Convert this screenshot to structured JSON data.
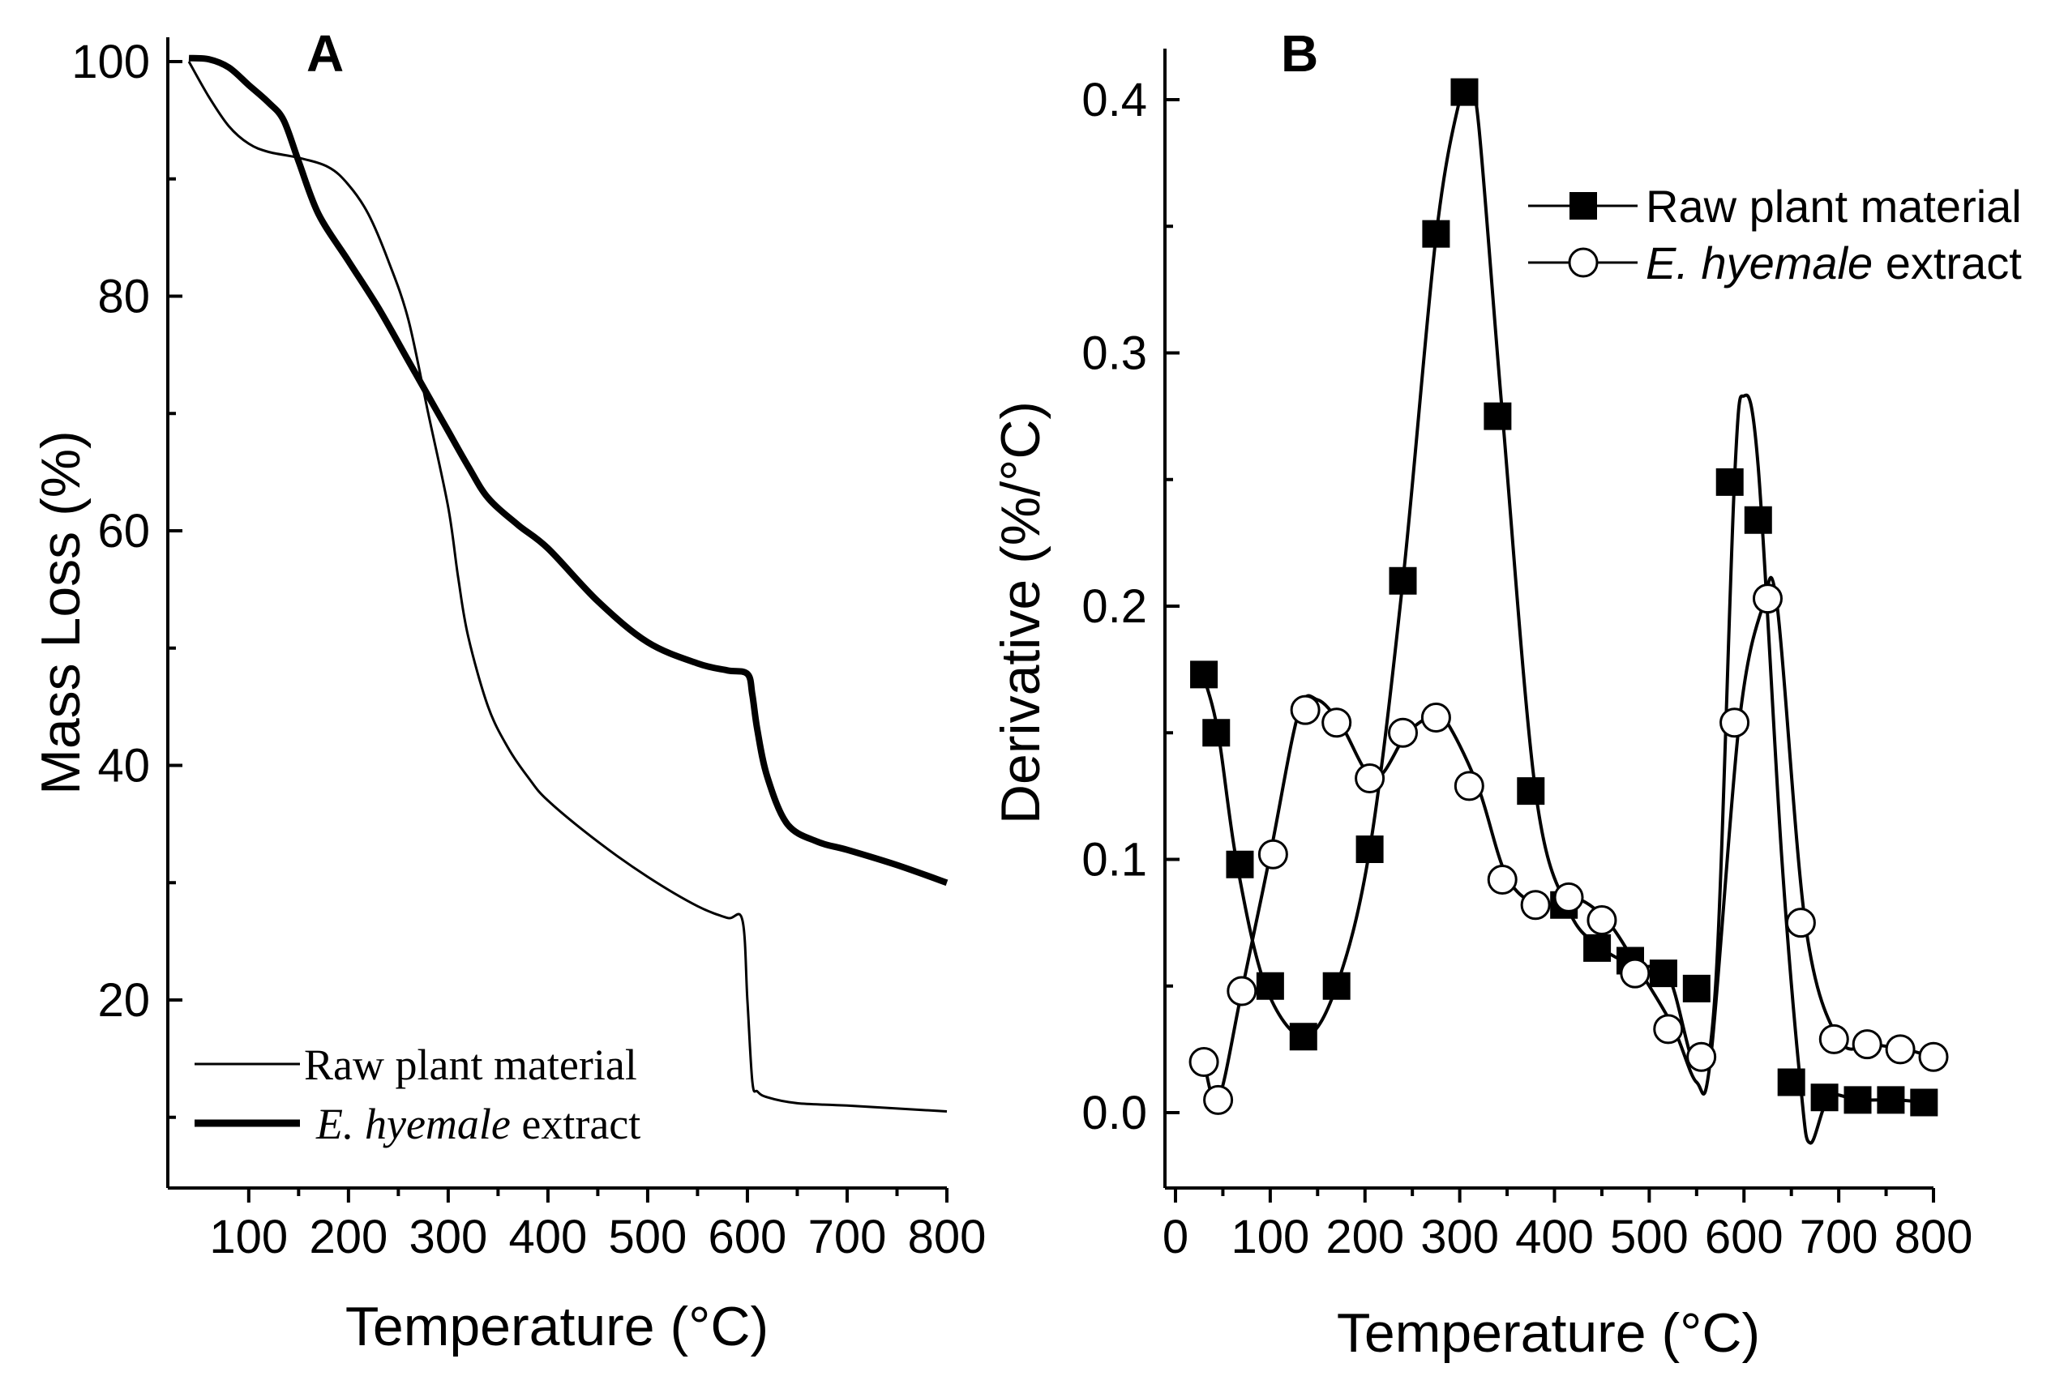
{
  "chart_data": [
    {
      "panel": "A",
      "type": "line",
      "title": "A",
      "xlabel": "Temperature (°C)",
      "ylabel": "Mass Loss (%)",
      "xlim": [
        20,
        800
      ],
      "ylim": [
        5,
        100
      ],
      "xticks": [
        100,
        200,
        300,
        400,
        500,
        600,
        700,
        800
      ],
      "xtick_labels": [
        "100",
        "200",
        "300",
        "400",
        "500",
        "600",
        "700",
        "800"
      ],
      "yticks": [
        20,
        40,
        60,
        80,
        100
      ],
      "ytick_labels": [
        "20",
        "40",
        "60",
        "80",
        "100"
      ],
      "legend_position": "bottom-left",
      "series": [
        {
          "name": "Raw plant material",
          "style": "thin",
          "x": [
            40,
            60,
            80,
            100,
            120,
            150,
            180,
            200,
            220,
            240,
            260,
            280,
            300,
            310,
            320,
            340,
            360,
            380,
            400,
            450,
            500,
            550,
            580,
            595,
            600,
            605,
            610,
            620,
            650,
            700,
            800
          ],
          "y": [
            100,
            97,
            94.5,
            93,
            92.3,
            91.8,
            91,
            89.5,
            87,
            83,
            78,
            70,
            62,
            56,
            51,
            45,
            41.5,
            39,
            37,
            33.5,
            30.5,
            28,
            27,
            26.8,
            20,
            13,
            12.2,
            11.7,
            11.2,
            11,
            10.5
          ]
        },
        {
          "name": "E. hyemale extract",
          "italic_part": "E. hyemale",
          "plain_part": " extract",
          "style": "thick",
          "x": [
            40,
            60,
            80,
            100,
            120,
            135,
            150,
            170,
            200,
            230,
            260,
            290,
            300,
            320,
            340,
            370,
            400,
            450,
            500,
            550,
            580,
            600,
            605,
            610,
            620,
            640,
            670,
            700,
            750,
            800
          ],
          "y": [
            100.3,
            100.2,
            99.5,
            98,
            96.5,
            95,
            91.5,
            87,
            83,
            79,
            74.5,
            70,
            68.5,
            65.5,
            62.8,
            60.5,
            58.5,
            54,
            50.5,
            48.7,
            48.1,
            47.8,
            46,
            43,
            39,
            35,
            33.5,
            32.8,
            31.5,
            30
          ]
        }
      ]
    },
    {
      "panel": "B",
      "type": "line",
      "title": "B",
      "xlabel": "Temperature (°C)",
      "ylabel": "Derivative (%/°C)",
      "xlim": [
        -10,
        800
      ],
      "ylim": [
        -0.03,
        0.42
      ],
      "xticks": [
        0,
        100,
        200,
        300,
        400,
        500,
        600,
        700,
        800
      ],
      "xtick_labels": [
        "0",
        "100",
        "200",
        "300",
        "400",
        "500",
        "600",
        "700",
        "800"
      ],
      "yticks": [
        0.0,
        0.1,
        0.2,
        0.3,
        0.4
      ],
      "ytick_labels": [
        "0.0",
        "0.1",
        "0.2",
        "0.3",
        "0.4"
      ],
      "legend_position": "top-right",
      "series": [
        {
          "name": "Raw plant material",
          "marker": "filled-square",
          "x": [
            30,
            45,
            65,
            95,
            135,
            170,
            205,
            240,
            275,
            300,
            310,
            320,
            345,
            380,
            415,
            450,
            485,
            520,
            550,
            570,
            590,
            600,
            615,
            640,
            660,
            670,
            690,
            720,
            760,
            795
          ],
          "y": [
            0.172,
            0.15,
            0.098,
            0.05,
            0.03,
            0.05,
            0.104,
            0.21,
            0.346,
            0.4,
            0.404,
            0.39,
            0.276,
            0.127,
            0.08,
            0.065,
            0.058,
            0.054,
            0.018,
            0.05,
            0.25,
            0.283,
            0.255,
            0.1,
            0.01,
            -0.012,
            0.006,
            0.005,
            0.005,
            0.004
          ],
          "markers_x": [
            30,
            43,
            68,
            100,
            135,
            170,
            205,
            240,
            275,
            305,
            340,
            375,
            410,
            445,
            480,
            515,
            550,
            585,
            615,
            650,
            685,
            720,
            755,
            790
          ],
          "markers_y": [
            0.173,
            0.15,
            0.098,
            0.05,
            0.03,
            0.05,
            0.104,
            0.21,
            0.347,
            0.403,
            0.275,
            0.127,
            0.082,
            0.065,
            0.06,
            0.055,
            0.049,
            0.249,
            0.234,
            0.012,
            0.006,
            0.005,
            0.005,
            0.004
          ]
        },
        {
          "name": "E. hyemale extract",
          "italic_part": "E. hyemale",
          "plain_part": " extract",
          "marker": "open-circle",
          "x": [
            30,
            45,
            70,
            100,
            130,
            150,
            175,
            210,
            245,
            275,
            290,
            320,
            350,
            385,
            420,
            455,
            490,
            525,
            550,
            565,
            595,
            620,
            635,
            665,
            700,
            735,
            770,
            800
          ],
          "y": [
            0.02,
            0.005,
            0.048,
            0.102,
            0.158,
            0.163,
            0.153,
            0.132,
            0.15,
            0.157,
            0.152,
            0.128,
            0.093,
            0.082,
            0.085,
            0.076,
            0.056,
            0.034,
            0.012,
            0.022,
            0.154,
            0.2,
            0.2,
            0.074,
            0.029,
            0.027,
            0.025,
            0.022
          ],
          "markers_x": [
            30,
            45,
            70,
            103,
            137,
            170,
            205,
            240,
            275,
            310,
            345,
            380,
            415,
            450,
            485,
            520,
            555,
            590,
            625,
            660,
            695,
            730,
            765,
            800
          ],
          "markers_y": [
            0.02,
            0.005,
            0.048,
            0.102,
            0.159,
            0.154,
            0.132,
            0.15,
            0.156,
            0.129,
            0.092,
            0.082,
            0.085,
            0.076,
            0.055,
            0.033,
            0.022,
            0.154,
            0.203,
            0.075,
            0.029,
            0.027,
            0.025,
            0.022
          ]
        }
      ]
    }
  ]
}
